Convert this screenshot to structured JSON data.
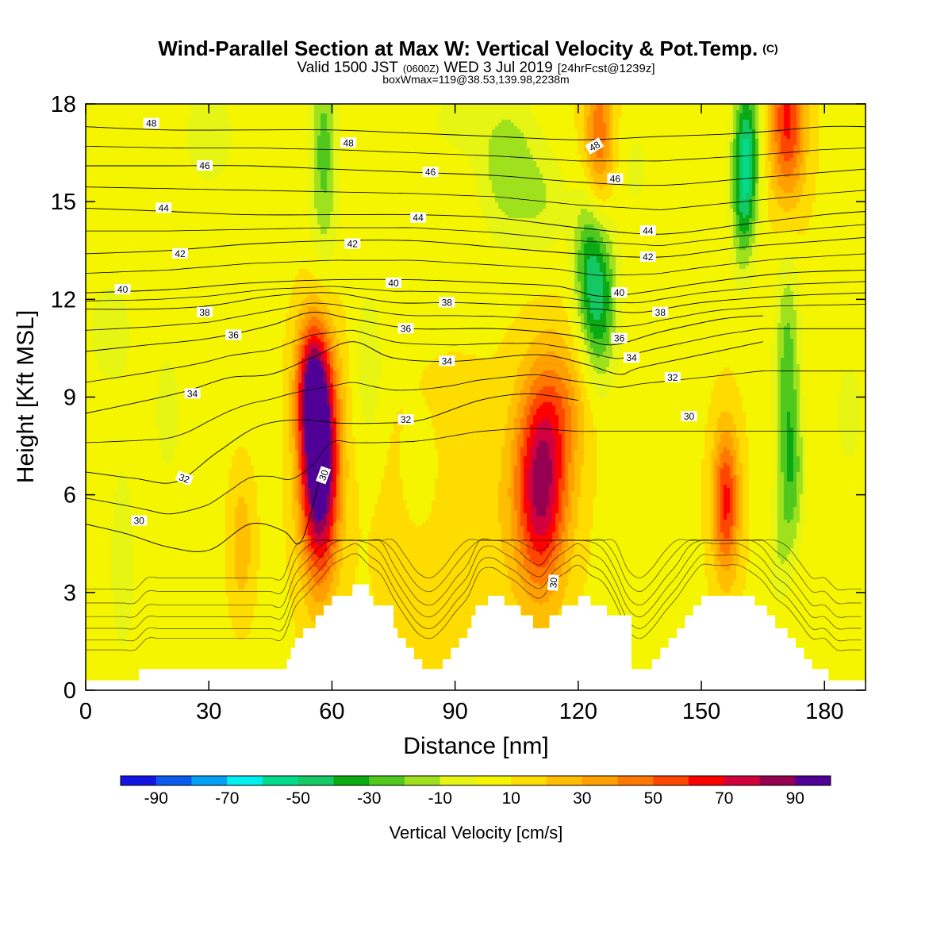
{
  "title": {
    "main": "Wind-Parallel Section at Max W: Vertical Velocity & Pot.Temp.",
    "copyright": "(C)",
    "valid_prefix": "Valid 1500 JST",
    "valid_utc": "(0600Z)",
    "valid_date": "WED 3 Jul 2019",
    "forecast": "[24hrFcst@1239z]",
    "box_info": "boxWmax=119@38.53,139.98,2238m"
  },
  "chart_data": {
    "type": "heatmap",
    "xlabel": "Distance [nm]",
    "ylabel": "Height [Kft MSL]",
    "xlim": [
      0,
      190
    ],
    "ylim": [
      0,
      18
    ],
    "x_ticks": [
      0,
      30,
      60,
      90,
      120,
      150,
      180
    ],
    "y_ticks": [
      0,
      3,
      6,
      9,
      12,
      15,
      18
    ],
    "colorbar": {
      "label": "Vertical Velocity [cm/s]",
      "bins": [
        -100,
        -90,
        -80,
        -70,
        -60,
        -50,
        -40,
        -30,
        -20,
        -10,
        0,
        10,
        20,
        30,
        40,
        50,
        60,
        70,
        80,
        90,
        100
      ],
      "tick_labels": [
        "-90",
        "-70",
        "-50",
        "-30",
        "-10",
        "10",
        "30",
        "50",
        "70",
        "90"
      ],
      "tick_values": [
        -90,
        -70,
        -50,
        -30,
        -10,
        10,
        30,
        50,
        70,
        90
      ],
      "colors": [
        "#1414e6",
        "#0a5af0",
        "#00a0f5",
        "#00f0f0",
        "#00dc8c",
        "#14c864",
        "#0aaa14",
        "#50c81e",
        "#a0e11e",
        "#e6f514",
        "#f5f500",
        "#ffdc00",
        "#ffbe00",
        "#ffa000",
        "#ff7800",
        "#ff4600",
        "#ff0000",
        "#d2003c",
        "#960050",
        "#500096"
      ]
    },
    "background_w": 8,
    "vertical_velocity_cells": [
      {
        "x": 57,
        "z": 7.0,
        "sx": 3.2,
        "sz": 2.4,
        "w": 110
      },
      {
        "x": 55,
        "z": 9.3,
        "sx": 2.6,
        "sz": 1.4,
        "w": 55
      },
      {
        "x": 111,
        "z": 6.2,
        "sx": 4.5,
        "sz": 2.2,
        "w": 75
      },
      {
        "x": 116,
        "z": 8.8,
        "sx": 5.0,
        "sz": 1.5,
        "w": 22
      },
      {
        "x": 156,
        "z": 5.8,
        "sx": 2.3,
        "sz": 1.6,
        "w": 55
      },
      {
        "x": 125,
        "z": 17.0,
        "sx": 2.5,
        "sz": 1.6,
        "w": 40
      },
      {
        "x": 171,
        "z": 17.5,
        "sx": 3.0,
        "sz": 1.8,
        "w": 55
      },
      {
        "x": 38,
        "z": 4.5,
        "sx": 2.0,
        "sz": 1.4,
        "w": 20
      },
      {
        "x": 90,
        "z": 5.0,
        "sx": 12,
        "sz": 3.0,
        "w": 10
      },
      {
        "x": 125,
        "z": 12.0,
        "sx": 3.2,
        "sz": 1.8,
        "w": -48
      },
      {
        "x": 122,
        "z": 13.5,
        "sx": 2.5,
        "sz": 1.5,
        "w": -22
      },
      {
        "x": 161,
        "z": 16.5,
        "sx": 2.3,
        "sz": 1.7,
        "w": -55
      },
      {
        "x": 160,
        "z": 14.5,
        "sx": 2.0,
        "sz": 1.5,
        "w": -22
      },
      {
        "x": 171,
        "z": 10.0,
        "sx": 2.2,
        "sz": 2.4,
        "w": -32
      },
      {
        "x": 172,
        "z": 6.5,
        "sx": 2.2,
        "sz": 1.6,
        "w": -28
      },
      {
        "x": 169,
        "z": 4.2,
        "sx": 2.0,
        "sz": 1.2,
        "w": -14
      },
      {
        "x": 58,
        "z": 16.5,
        "sx": 2.5,
        "sz": 2.5,
        "w": -32
      },
      {
        "x": 69,
        "z": 10.0,
        "sx": 2.4,
        "sz": 1.8,
        "w": -16
      },
      {
        "x": 103,
        "z": 16.0,
        "sx": 5.0,
        "sz": 1.6,
        "w": -26
      },
      {
        "x": 112,
        "z": 15.0,
        "sx": 4.0,
        "sz": 1.2,
        "w": -14
      },
      {
        "x": 20,
        "z": 8.5,
        "sx": 2.5,
        "sz": 1.5,
        "w": -14
      },
      {
        "x": 9,
        "z": 4.0,
        "sx": 2.5,
        "sz": 2.5,
        "w": -14
      },
      {
        "x": 6,
        "z": 11.0,
        "sx": 5.0,
        "sz": 1.5,
        "w": -12
      },
      {
        "x": 30,
        "z": 17.0,
        "sx": 6.0,
        "sz": 1.5,
        "w": -12
      },
      {
        "x": 90,
        "z": 17.5,
        "sx": 6.0,
        "sz": 1.0,
        "w": -10
      },
      {
        "x": 82,
        "z": 6.5,
        "sx": 3.0,
        "sz": 1.2,
        "w": -12
      },
      {
        "x": 186,
        "z": 8.5,
        "sx": 3.0,
        "sz": 1.5,
        "w": -12
      },
      {
        "x": 134,
        "z": 16.0,
        "sx": 3.0,
        "sz": 1.2,
        "w": -10
      }
    ],
    "terrain": [
      [
        0,
        0.3
      ],
      [
        12,
        0.3
      ],
      [
        13,
        0.65
      ],
      [
        48,
        0.65
      ],
      [
        49,
        0.95
      ],
      [
        50,
        1.3
      ],
      [
        51,
        1.6
      ],
      [
        53,
        1.9
      ],
      [
        56,
        2.3
      ],
      [
        58,
        2.6
      ],
      [
        60,
        2.9
      ],
      [
        65,
        3.25
      ],
      [
        68,
        3.25
      ],
      [
        69,
        2.9
      ],
      [
        70,
        2.6
      ],
      [
        73,
        2.6
      ],
      [
        75,
        1.9
      ],
      [
        76,
        1.6
      ],
      [
        78,
        1.3
      ],
      [
        80,
        0.95
      ],
      [
        82,
        0.65
      ],
      [
        85,
        0.65
      ],
      [
        87,
        0.95
      ],
      [
        89,
        1.3
      ],
      [
        91,
        1.6
      ],
      [
        93,
        1.9
      ],
      [
        94,
        2.3
      ],
      [
        95,
        2.6
      ],
      [
        98,
        2.9
      ],
      [
        102,
        2.6
      ],
      [
        106,
        2.3
      ],
      [
        109,
        1.9
      ],
      [
        111,
        1.9
      ],
      [
        113,
        2.3
      ],
      [
        116,
        2.6
      ],
      [
        120,
        2.9
      ],
      [
        123,
        2.6
      ],
      [
        127,
        2.3
      ],
      [
        133,
        0.65
      ],
      [
        136,
        0.65
      ],
      [
        138,
        0.95
      ],
      [
        140,
        1.3
      ],
      [
        142,
        1.6
      ],
      [
        144,
        1.9
      ],
      [
        146,
        2.3
      ],
      [
        148,
        2.6
      ],
      [
        150,
        2.9
      ],
      [
        160,
        2.9
      ],
      [
        163,
        2.6
      ],
      [
        166,
        2.3
      ],
      [
        168,
        1.9
      ],
      [
        171,
        1.6
      ],
      [
        173,
        1.3
      ],
      [
        175,
        0.95
      ],
      [
        177,
        0.65
      ],
      [
        180,
        0.65
      ],
      [
        181,
        0.3
      ],
      [
        190,
        0.3
      ]
    ],
    "theta_isolines": [
      {
        "label": "30",
        "points": [
          [
            0,
            5.1
          ],
          [
            10,
            4.8
          ],
          [
            20,
            4.4
          ],
          [
            30,
            4.3
          ],
          [
            40,
            5.1
          ],
          [
            48,
            4.9
          ],
          [
            52,
            4.5
          ],
          [
            55,
            5.5
          ],
          [
            58,
            7.0
          ]
        ]
      },
      {
        "label": "32",
        "points": [
          [
            0,
            6.7
          ],
          [
            12,
            6.5
          ],
          [
            22,
            6.4
          ],
          [
            32,
            7.3
          ],
          [
            42,
            8.1
          ],
          [
            52,
            8.3
          ],
          [
            62,
            8.2
          ],
          [
            72,
            8.2
          ],
          [
            82,
            8.3
          ],
          [
            96,
            8.9
          ],
          [
            108,
            9.1
          ],
          [
            120,
            8.9
          ]
        ]
      },
      {
        "label": "34",
        "points": [
          [
            0,
            8.5
          ],
          [
            15,
            8.9
          ],
          [
            25,
            9.2
          ],
          [
            35,
            9.6
          ],
          [
            45,
            9.7
          ],
          [
            55,
            10.2
          ],
          [
            65,
            10.7
          ],
          [
            75,
            10.2
          ],
          [
            90,
            10.1
          ],
          [
            110,
            10.3
          ],
          [
            122,
            10.0
          ],
          [
            130,
            9.7
          ],
          [
            135,
            9.9
          ],
          [
            150,
            10.3
          ],
          [
            165,
            10.7
          ]
        ]
      },
      {
        "label": "36",
        "points": [
          [
            0,
            10.4
          ],
          [
            15,
            10.6
          ],
          [
            30,
            10.8
          ],
          [
            45,
            11.2
          ],
          [
            55,
            11.6
          ],
          [
            65,
            11.4
          ],
          [
            80,
            11.1
          ],
          [
            100,
            11.1
          ],
          [
            118,
            10.9
          ],
          [
            128,
            10.6
          ],
          [
            140,
            11.0
          ],
          [
            155,
            11.4
          ],
          [
            165,
            11.5
          ]
        ]
      },
      {
        "label": "38",
        "points": [
          [
            0,
            11.7
          ],
          [
            15,
            11.7
          ],
          [
            30,
            11.8
          ],
          [
            45,
            12.1
          ],
          [
            60,
            12.2
          ],
          [
            75,
            11.9
          ],
          [
            90,
            11.9
          ],
          [
            110,
            11.8
          ],
          [
            125,
            11.7
          ],
          [
            135,
            11.6
          ],
          [
            150,
            11.9
          ],
          [
            170,
            12.1
          ],
          [
            190,
            12.2
          ]
        ]
      },
      {
        "label": "40",
        "points": [
          [
            0,
            12.2
          ],
          [
            20,
            12.3
          ],
          [
            40,
            12.5
          ],
          [
            60,
            12.6
          ],
          [
            80,
            12.6
          ],
          [
            100,
            12.5
          ],
          [
            115,
            12.4
          ],
          [
            125,
            12.1
          ],
          [
            135,
            12.2
          ],
          [
            150,
            12.5
          ],
          [
            170,
            12.8
          ],
          [
            190,
            12.9
          ]
        ]
      },
      {
        "label": "42",
        "points": [
          [
            0,
            13.4
          ],
          [
            20,
            13.5
          ],
          [
            40,
            13.7
          ],
          [
            60,
            13.8
          ],
          [
            80,
            13.8
          ],
          [
            100,
            13.6
          ],
          [
            120,
            13.4
          ],
          [
            140,
            13.3
          ],
          [
            160,
            13.6
          ],
          [
            180,
            13.8
          ],
          [
            190,
            13.9
          ]
        ]
      },
      {
        "label": "44",
        "points": [
          [
            0,
            14.8
          ],
          [
            20,
            14.7
          ],
          [
            40,
            14.6
          ],
          [
            60,
            14.6
          ],
          [
            80,
            14.6
          ],
          [
            100,
            14.5
          ],
          [
            120,
            14.2
          ],
          [
            140,
            14.0
          ],
          [
            160,
            14.3
          ],
          [
            180,
            14.6
          ],
          [
            190,
            14.7
          ]
        ]
      },
      {
        "label": "46",
        "points": [
          [
            0,
            16.1
          ],
          [
            20,
            16.1
          ],
          [
            40,
            16.1
          ],
          [
            60,
            16.0
          ],
          [
            80,
            15.9
          ],
          [
            100,
            15.8
          ],
          [
            120,
            15.6
          ],
          [
            140,
            15.5
          ],
          [
            160,
            15.7
          ],
          [
            180,
            15.9
          ],
          [
            190,
            16.0
          ]
        ]
      },
      {
        "label": "48",
        "points": [
          [
            0,
            17.3
          ],
          [
            20,
            17.2
          ],
          [
            40,
            17.2
          ],
          [
            60,
            17.2
          ],
          [
            80,
            17.1
          ],
          [
            100,
            17.0
          ],
          [
            120,
            16.9
          ],
          [
            140,
            17.0
          ],
          [
            160,
            17.1
          ],
          [
            180,
            17.3
          ],
          [
            190,
            17.3
          ]
        ]
      }
    ],
    "contour_labels": [
      {
        "text": "48",
        "x": 16,
        "z": 17.4
      },
      {
        "text": "48",
        "x": 64,
        "z": 16.8
      },
      {
        "text": "48",
        "x": 124,
        "z": 16.7,
        "rot": -30
      },
      {
        "text": "46",
        "x": 29,
        "z": 16.1
      },
      {
        "text": "46",
        "x": 84,
        "z": 15.9
      },
      {
        "text": "46",
        "x": 129,
        "z": 15.7
      },
      {
        "text": "44",
        "x": 19,
        "z": 14.8
      },
      {
        "text": "44",
        "x": 81,
        "z": 14.5
      },
      {
        "text": "44",
        "x": 137,
        "z": 14.1
      },
      {
        "text": "42",
        "x": 23,
        "z": 13.4
      },
      {
        "text": "42",
        "x": 65,
        "z": 13.7
      },
      {
        "text": "42",
        "x": 137,
        "z": 13.3
      },
      {
        "text": "40",
        "x": 9,
        "z": 12.3
      },
      {
        "text": "40",
        "x": 75,
        "z": 12.5
      },
      {
        "text": "40",
        "x": 130,
        "z": 12.2
      },
      {
        "text": "38",
        "x": 29,
        "z": 11.6
      },
      {
        "text": "38",
        "x": 88,
        "z": 11.9
      },
      {
        "text": "38",
        "x": 140,
        "z": 11.6
      },
      {
        "text": "36",
        "x": 36,
        "z": 10.9
      },
      {
        "text": "36",
        "x": 78,
        "z": 11.1
      },
      {
        "text": "36",
        "x": 130,
        "z": 10.8
      },
      {
        "text": "34",
        "x": 26,
        "z": 9.1
      },
      {
        "text": "34",
        "x": 88,
        "z": 10.1
      },
      {
        "text": "34",
        "x": 133,
        "z": 10.2
      },
      {
        "text": "32",
        "x": 78,
        "z": 8.3
      },
      {
        "text": "32",
        "x": 143,
        "z": 9.6
      },
      {
        "text": "32",
        "x": 24,
        "z": 6.5,
        "rot": 20
      },
      {
        "text": "30",
        "x": 13,
        "z": 5.2
      },
      {
        "text": "30",
        "x": 58,
        "z": 6.6,
        "rot": -70
      },
      {
        "text": "30",
        "x": 147,
        "z": 8.4
      },
      {
        "text": "30",
        "x": 114,
        "z": 3.3,
        "rot": -85
      }
    ]
  }
}
